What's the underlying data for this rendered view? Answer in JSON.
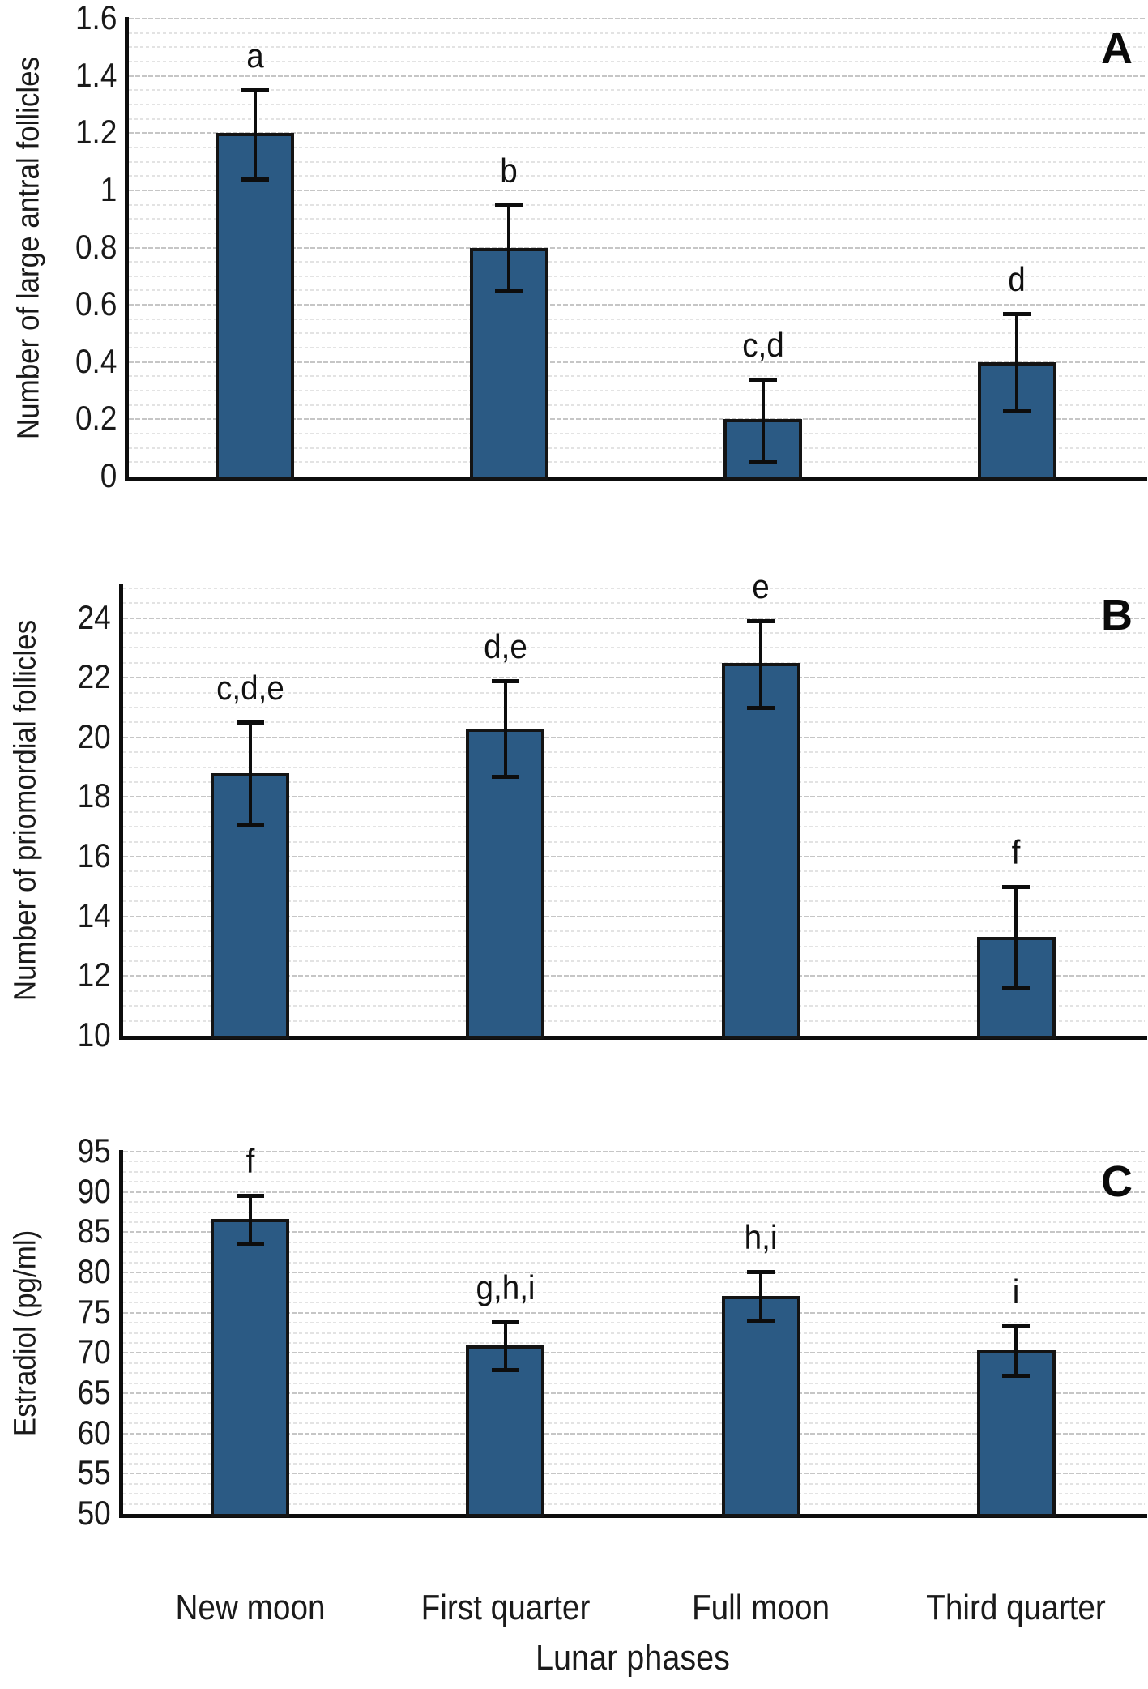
{
  "figure": {
    "x_axis_title": "Lunar phases",
    "categories": [
      "New moon",
      "First quarter",
      "Full moon",
      "Third quarter"
    ],
    "colors": {
      "bar_fill": "#2b5a84",
      "bar_border": "#141414",
      "axis": "#0d0d0d",
      "gridline_minor": "#e3e3e3",
      "gridline_major": "#c6c6c6",
      "text": "#1a1a1a"
    }
  },
  "chart_data": [
    {
      "type": "bar",
      "panel_label": "A",
      "title": "",
      "xlabel": "",
      "ylabel": "Number of large antral follicles",
      "categories": [
        "New moon",
        "First quarter",
        "Full moon",
        "Third quarter"
      ],
      "values": [
        1.2,
        0.8,
        0.2,
        0.4
      ],
      "error_low": [
        1.04,
        0.65,
        0.05,
        0.23
      ],
      "error_high": [
        1.35,
        0.95,
        0.34,
        0.57
      ],
      "sig_letters": [
        "a",
        "b",
        "c,d",
        "d"
      ],
      "ylim": [
        0,
        1.6
      ],
      "ytick_step": 0.2,
      "ytick_labels": [
        "0",
        "0.2",
        "0.4",
        "0.6",
        "0.8",
        "1",
        "1.2",
        "1.4",
        "1.6"
      ],
      "yminor_step": 0.05,
      "grid": true,
      "legend": "none"
    },
    {
      "type": "bar",
      "panel_label": "B",
      "title": "",
      "xlabel": "",
      "ylabel": "Number of priomordial follicles",
      "categories": [
        "New moon",
        "First quarter",
        "Full moon",
        "Third quarter"
      ],
      "values": [
        18.8,
        20.3,
        22.5,
        13.3
      ],
      "error_low": [
        17.1,
        18.7,
        21.0,
        11.6
      ],
      "error_high": [
        20.5,
        21.9,
        23.9,
        15.0
      ],
      "sig_letters": [
        "c,d,e",
        "d,e",
        "e",
        "f"
      ],
      "ylim": [
        10,
        25.1
      ],
      "ytick_step": 2,
      "ytick_max": 24,
      "ytick_labels": [
        "10",
        "12",
        "14",
        "16",
        "18",
        "20",
        "22",
        "24"
      ],
      "yminor_step": 0.5,
      "grid": true,
      "legend": "none"
    },
    {
      "type": "bar",
      "panel_label": "C",
      "title": "",
      "xlabel": "Lunar phases",
      "ylabel": "Estradiol (pg/ml)",
      "categories": [
        "New moon",
        "First quarter",
        "Full moon",
        "Third quarter"
      ],
      "values": [
        86.6,
        70.9,
        77.1,
        70.3
      ],
      "error_low": [
        83.6,
        67.9,
        74.1,
        67.2
      ],
      "error_high": [
        89.6,
        73.9,
        80.1,
        73.4
      ],
      "sig_letters": [
        "f",
        "g,h,i",
        "h,i",
        "i"
      ],
      "ylim": [
        50,
        95
      ],
      "ytick_step": 5,
      "ytick_labels": [
        "50",
        "55",
        "60",
        "65",
        "70",
        "75",
        "80",
        "85",
        "90",
        "95"
      ],
      "yminor_step": 1.25,
      "grid": true,
      "legend": "none"
    }
  ]
}
